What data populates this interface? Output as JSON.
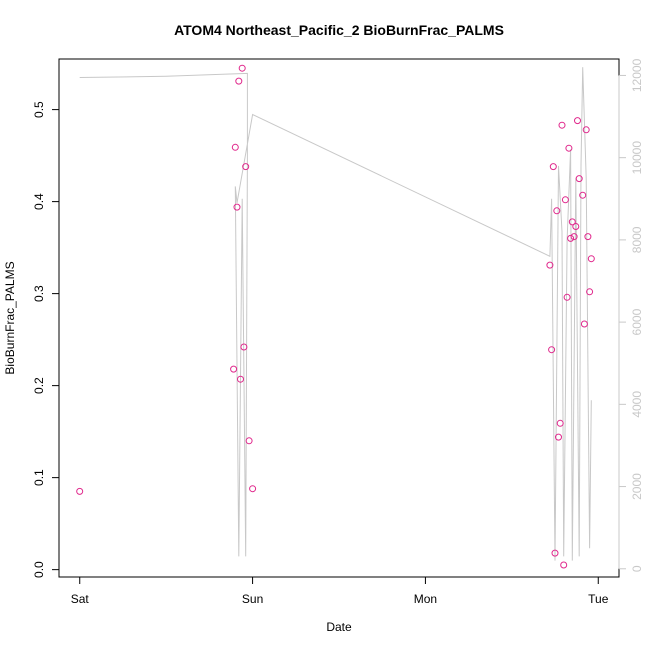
{
  "chart_data": {
    "type": "scatter",
    "title": "ATOM4 Northeast_Pacific_2 BioBurnFrac_PALMS",
    "xlabel": "Date",
    "ylabel": "BioBurnFrac_PALMS",
    "x_unit": "days since first x tick",
    "x_ticks": [
      {
        "value": 0,
        "label": "Sat"
      },
      {
        "value": 1,
        "label": "Sun"
      },
      {
        "value": 2,
        "label": "Mon"
      },
      {
        "value": 3,
        "label": "Tue"
      }
    ],
    "xlim": [
      -0.12,
      3.12
    ],
    "ylim": [
      -0.008,
      0.555
    ],
    "y_ticks": [
      {
        "value": 0.0,
        "label": "0.0"
      },
      {
        "value": 0.1,
        "label": "0.1"
      },
      {
        "value": 0.2,
        "label": "0.2"
      },
      {
        "value": 0.3,
        "label": "0.3"
      },
      {
        "value": 0.4,
        "label": "0.4"
      },
      {
        "value": 0.5,
        "label": "0.5"
      }
    ],
    "y2lim": [
      -200,
      12400
    ],
    "y2_ticks": [
      {
        "value": 0,
        "label": "0"
      },
      {
        "value": 2000,
        "label": "2000"
      },
      {
        "value": 4000,
        "label": "4000"
      },
      {
        "value": 6000,
        "label": "6000"
      },
      {
        "value": 8000,
        "label": "8000"
      },
      {
        "value": 10000,
        "label": "10000"
      },
      {
        "value": 12000,
        "label": "12000"
      }
    ],
    "grid": false,
    "series": [
      {
        "color": "#e0288c",
        "marker": "circle-open",
        "axis": "left",
        "points": [
          {
            "x": 0.0,
            "y": 0.085
          },
          {
            "x": 0.89,
            "y": 0.218
          },
          {
            "x": 0.9,
            "y": 0.459
          },
          {
            "x": 0.91,
            "y": 0.394
          },
          {
            "x": 0.92,
            "y": 0.531
          },
          {
            "x": 0.93,
            "y": 0.207
          },
          {
            "x": 0.94,
            "y": 0.545
          },
          {
            "x": 0.95,
            "y": 0.242
          },
          {
            "x": 0.96,
            "y": 0.438
          },
          {
            "x": 0.98,
            "y": 0.14
          },
          {
            "x": 1.0,
            "y": 0.088
          },
          {
            "x": 2.72,
            "y": 0.331
          },
          {
            "x": 2.73,
            "y": 0.239
          },
          {
            "x": 2.74,
            "y": 0.438
          },
          {
            "x": 2.75,
            "y": 0.018
          },
          {
            "x": 2.76,
            "y": 0.39
          },
          {
            "x": 2.77,
            "y": 0.144
          },
          {
            "x": 2.78,
            "y": 0.159
          },
          {
            "x": 2.79,
            "y": 0.483
          },
          {
            "x": 2.8,
            "y": 0.005
          },
          {
            "x": 2.81,
            "y": 0.402
          },
          {
            "x": 2.82,
            "y": 0.296
          },
          {
            "x": 2.83,
            "y": 0.458
          },
          {
            "x": 2.84,
            "y": 0.36
          },
          {
            "x": 2.85,
            "y": 0.378
          },
          {
            "x": 2.86,
            "y": 0.362
          },
          {
            "x": 2.87,
            "y": 0.373
          },
          {
            "x": 2.88,
            "y": 0.488
          },
          {
            "x": 2.89,
            "y": 0.425
          },
          {
            "x": 2.91,
            "y": 0.407
          },
          {
            "x": 2.92,
            "y": 0.267
          },
          {
            "x": 2.93,
            "y": 0.478
          },
          {
            "x": 2.94,
            "y": 0.362
          },
          {
            "x": 2.95,
            "y": 0.302
          },
          {
            "x": 2.96,
            "y": 0.338
          }
        ]
      },
      {
        "color": "#c8c8c8",
        "style": "line",
        "axis": "right",
        "points": [
          {
            "x": 0.0,
            "y": 11950
          },
          {
            "x": 0.5,
            "y": 11980
          },
          {
            "x": 0.97,
            "y": 12050
          },
          {
            "x": 0.97,
            "y": 10000
          },
          {
            "x": 0.96,
            "y": 300
          },
          {
            "x": 0.94,
            "y": 9000
          },
          {
            "x": 0.92,
            "y": 300
          },
          {
            "x": 0.9,
            "y": 9300
          },
          {
            "x": 0.91,
            "y": 8900
          },
          {
            "x": 1.0,
            "y": 11050
          },
          {
            "x": 2.72,
            "y": 7600
          },
          {
            "x": 2.73,
            "y": 9000
          },
          {
            "x": 2.75,
            "y": 200
          },
          {
            "x": 2.77,
            "y": 9800
          },
          {
            "x": 2.79,
            "y": 8200
          },
          {
            "x": 2.8,
            "y": 300
          },
          {
            "x": 2.82,
            "y": 8000
          },
          {
            "x": 2.84,
            "y": 10200
          },
          {
            "x": 2.85,
            "y": 200
          },
          {
            "x": 2.87,
            "y": 9500
          },
          {
            "x": 2.89,
            "y": 300
          },
          {
            "x": 2.9,
            "y": 9800
          },
          {
            "x": 2.91,
            "y": 12200
          },
          {
            "x": 2.93,
            "y": 9500
          },
          {
            "x": 2.95,
            "y": 500
          },
          {
            "x": 2.96,
            "y": 4100
          }
        ]
      }
    ],
    "colors": {
      "axis": "#000000",
      "right_axis": "#c8c8c8",
      "points": "#e0288c",
      "line": "#c8c8c8"
    }
  }
}
